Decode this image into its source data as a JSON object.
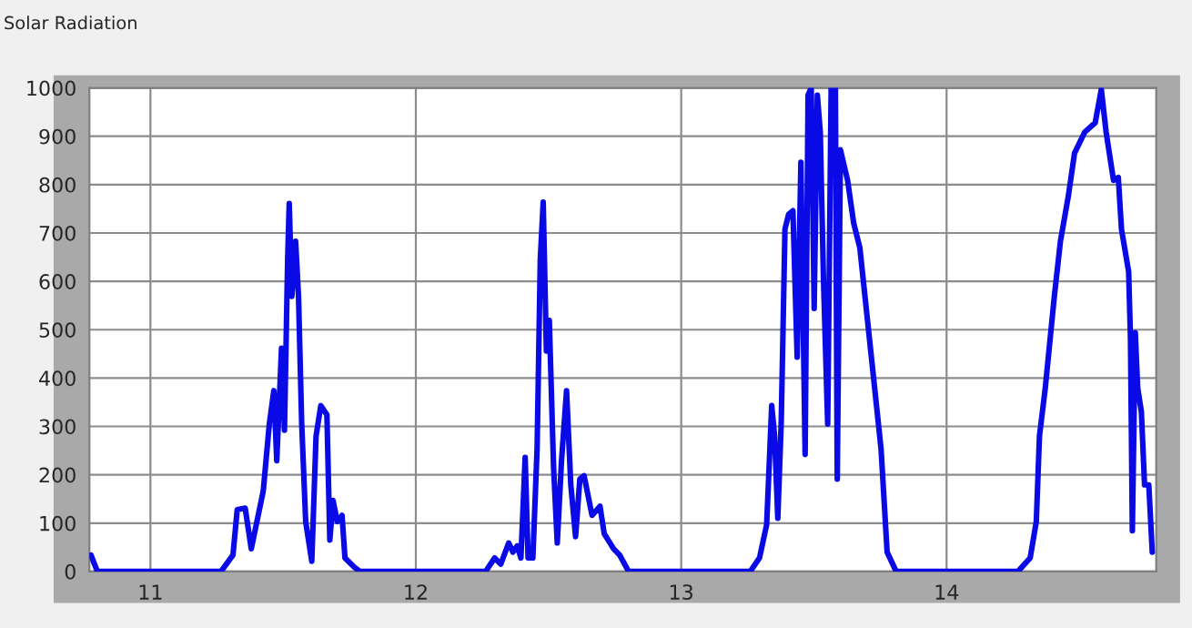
{
  "chart_data": {
    "type": "line",
    "title": "Solar Radiation",
    "x": [
      10.776,
      10.8,
      11.266,
      11.311,
      11.327,
      11.357,
      11.38,
      11.425,
      11.448,
      11.465,
      11.476,
      11.494,
      11.505,
      11.517,
      11.523,
      11.533,
      11.547,
      11.558,
      11.57,
      11.585,
      11.608,
      11.624,
      11.642,
      11.665,
      11.676,
      11.688,
      11.704,
      11.722,
      11.733,
      11.768,
      11.79,
      12.263,
      12.297,
      12.32,
      12.35,
      12.366,
      12.382,
      12.396,
      12.412,
      12.423,
      12.441,
      12.457,
      12.469,
      12.48,
      12.492,
      12.503,
      12.519,
      12.533,
      12.549,
      12.568,
      12.584,
      12.602,
      12.618,
      12.634,
      12.664,
      12.694,
      12.71,
      12.745,
      12.768,
      12.802,
      13.26,
      13.295,
      13.322,
      13.341,
      13.352,
      13.364,
      13.377,
      13.391,
      13.405,
      13.421,
      13.437,
      13.451,
      13.467,
      13.478,
      13.49,
      13.501,
      13.513,
      13.524,
      13.536,
      13.552,
      13.565,
      13.581,
      13.588,
      13.6,
      13.627,
      13.65,
      13.673,
      13.719,
      13.753,
      13.776,
      13.81,
      14.269,
      14.315,
      14.338,
      14.35,
      14.372,
      14.406,
      14.429,
      14.459,
      14.482,
      14.521,
      14.56,
      14.583,
      14.601,
      14.629,
      14.647,
      14.659,
      14.686,
      14.693,
      14.7,
      14.711,
      14.72,
      14.734,
      14.746,
      14.762,
      14.775
    ],
    "series": [
      {
        "color": "#0a0ae6",
        "values": [
          34,
          0,
          0,
          34,
          128,
          131,
          47,
          166,
          305,
          374,
          229,
          462,
          292,
          645,
          761,
          569,
          683,
          569,
          305,
          103,
          21,
          280,
          343,
          324,
          65,
          147,
          103,
          116,
          28,
          9,
          0,
          0,
          28,
          15,
          59,
          40,
          53,
          28,
          236,
          28,
          28,
          254,
          645,
          764,
          456,
          519,
          217,
          59,
          229,
          374,
          179,
          72,
          191,
          198,
          116,
          135,
          78,
          47,
          34,
          0,
          0,
          28,
          97,
          343,
          280,
          110,
          311,
          708,
          739,
          746,
          443,
          846,
          242,
          985,
          1000,
          544,
          985,
          909,
          607,
          305,
          1000,
          1000,
          191,
          872,
          809,
          720,
          670,
          431,
          254,
          40,
          0,
          0,
          28,
          103,
          280,
          380,
          569,
          683,
          777,
          865,
          909,
          928,
          997,
          909,
          809,
          815,
          708,
          620,
          481,
          84,
          494,
          380,
          330,
          179,
          179,
          40
        ]
      }
    ],
    "xlim": [
      10.77,
      14.79
    ],
    "xticks": [
      11,
      12,
      13,
      14
    ],
    "ylim": [
      0,
      1000
    ],
    "yticks": [
      0,
      100,
      200,
      300,
      400,
      500,
      600,
      700,
      800,
      900,
      1000
    ],
    "grid": true,
    "marker": "none",
    "line_style": "solid"
  }
}
